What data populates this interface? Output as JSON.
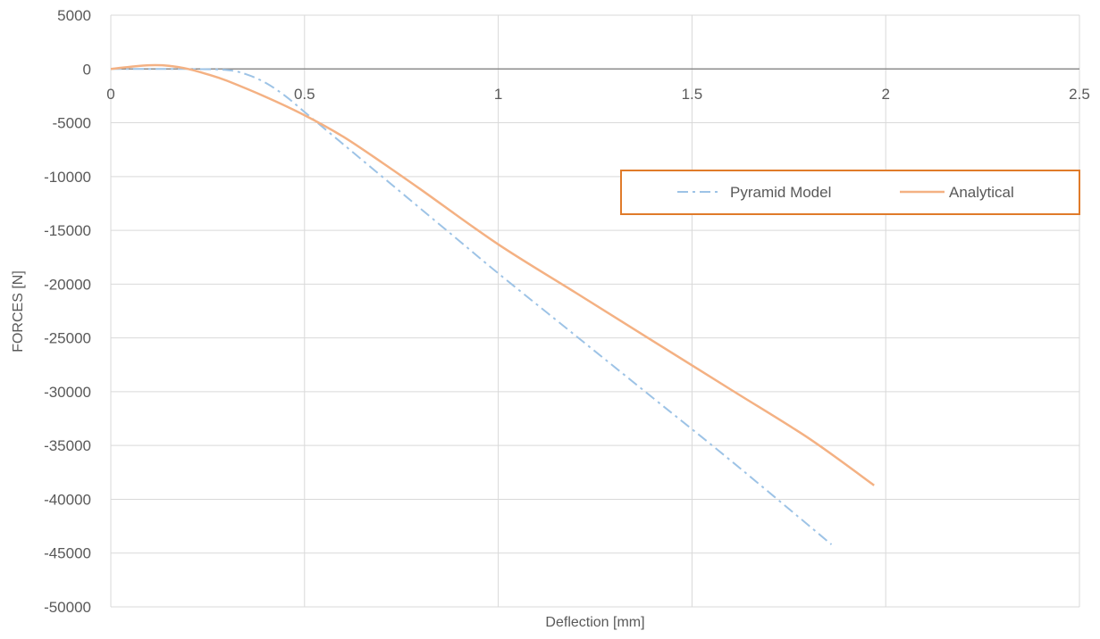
{
  "chart_data": {
    "type": "line",
    "title": "",
    "xlabel": "Deflection [mm]",
    "ylabel": "FORCES [N]",
    "xlim": [
      0,
      2.5
    ],
    "ylim": [
      -50000,
      5000
    ],
    "x_ticks": [
      0,
      0.5,
      1,
      1.5,
      2,
      2.5
    ],
    "x_tick_labels": [
      "0",
      "0.5",
      "1",
      "1.5",
      "2",
      "2.5"
    ],
    "y_ticks": [
      5000,
      0,
      -5000,
      -10000,
      -15000,
      -20000,
      -25000,
      -30000,
      -35000,
      -40000,
      -45000,
      -50000
    ],
    "y_tick_labels": [
      "5000",
      "0",
      "-5000",
      "-10000",
      "-15000",
      "-20000",
      "-25000",
      "-30000",
      "-35000",
      "-40000",
      "-45000",
      "-50000"
    ],
    "grid": {
      "vertical": true,
      "horizontal": true
    },
    "legend": {
      "placement": "top-right",
      "box_color": "#E07B2A"
    },
    "series": [
      {
        "name": "Pyramid Model",
        "color": "#9DC3E6",
        "style": "dash-dot",
        "x": [
          0,
          0.1,
          0.2,
          0.3,
          0.35,
          0.4,
          0.45,
          0.5,
          0.6,
          0.7,
          0.8,
          0.9,
          1.0,
          1.2,
          1.4,
          1.6,
          1.86
        ],
        "y": [
          0,
          0,
          0,
          -100,
          -500,
          -1300,
          -2500,
          -4000,
          -7000,
          -10000,
          -13000,
          -16000,
          -19000,
          -24800,
          -30600,
          -36400,
          -44200
        ]
      },
      {
        "name": "Analytical",
        "color": "#F4B183",
        "style": "solid",
        "x": [
          0,
          0.05,
          0.1,
          0.15,
          0.2,
          0.25,
          0.3,
          0.4,
          0.5,
          0.6,
          0.7,
          0.8,
          1.0,
          1.2,
          1.4,
          1.6,
          1.8,
          1.97
        ],
        "y": [
          0,
          200,
          350,
          300,
          0,
          -500,
          -1100,
          -2600,
          -4300,
          -6300,
          -8700,
          -11200,
          -16300,
          -20800,
          -25300,
          -29800,
          -34300,
          -38700
        ]
      }
    ]
  }
}
